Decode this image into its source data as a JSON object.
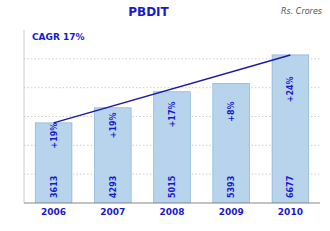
{
  "chart_data": {
    "type": "bar",
    "title": "PBDIT",
    "subtitle": "Rs. Crores",
    "annotations": [
      {
        "text": "CAGR 17%"
      },
      {
        "text": "+19%",
        "category": "2006"
      },
      {
        "text": "+19%",
        "category": "2007"
      },
      {
        "text": "+17%",
        "category": "2008"
      },
      {
        "text": "+8%",
        "category": "2009"
      },
      {
        "text": "+24%",
        "category": "2010"
      }
    ],
    "categories": [
      "2006",
      "2007",
      "2008",
      "2009",
      "2010"
    ],
    "values": [
      3613,
      4293,
      5015,
      5393,
      6677
    ],
    "color": "#b8d4ec",
    "ylim": [
      0,
      7800
    ],
    "yticks": [
      1300,
      2600,
      3900,
      5200,
      6500
    ],
    "grid": true,
    "data_labels": true,
    "tick_labels": "x"
  }
}
